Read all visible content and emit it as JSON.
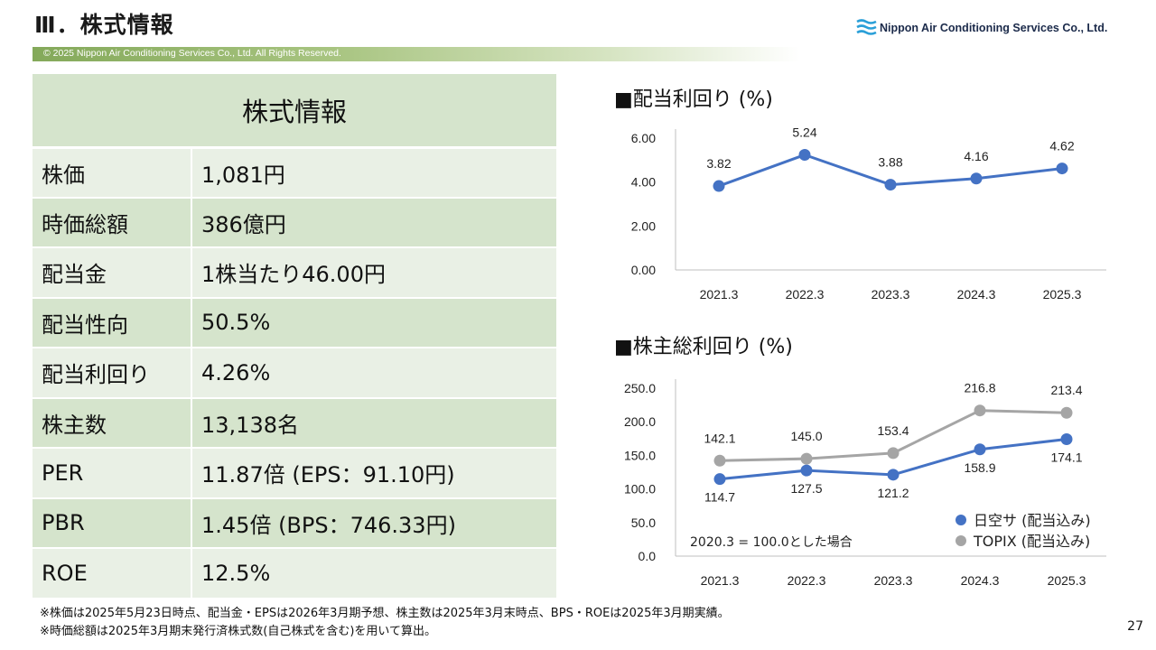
{
  "header": {
    "title": "Ⅲ．株式情報",
    "company": "Nippon Air Conditioning Services Co., Ltd.",
    "copyright": "© 2025 Nippon Air Conditioning Services Co., Ltd. All Rights Reserved."
  },
  "table": {
    "title": "株式情報",
    "rows": [
      {
        "label": "株価",
        "value": "1,081円"
      },
      {
        "label": "時価総額",
        "value": "386億円"
      },
      {
        "label": "配当金",
        "value": "1株当たり46.00円"
      },
      {
        "label": "配当性向",
        "value": "50.5%"
      },
      {
        "label": "配当利回り",
        "value": "4.26%"
      },
      {
        "label": "株主数",
        "value": "13,138名"
      },
      {
        "label": "PER",
        "value": "11.87倍 (EPS：91.10円)"
      },
      {
        "label": "PBR",
        "value": "1.45倍 (BPS：746.33円)"
      },
      {
        "label": "ROE",
        "value": "12.5%"
      }
    ]
  },
  "chart_data": [
    {
      "type": "line",
      "title": "■配当利回り (%)",
      "categories": [
        "2021.3",
        "2022.3",
        "2023.3",
        "2024.3",
        "2025.3"
      ],
      "yticks": [
        "0.00",
        "2.00",
        "4.00",
        "6.00"
      ],
      "ylim": [
        0,
        6
      ],
      "series": [
        {
          "values": [
            3.82,
            5.24,
            3.88,
            4.16,
            4.62
          ],
          "labels": [
            "3.82",
            "5.24",
            "3.88",
            "4.16",
            "4.62"
          ],
          "color": "#4472c4"
        }
      ],
      "grid": false
    },
    {
      "type": "line",
      "title": "■株主総利回り (%)",
      "categories": [
        "2021.3",
        "2022.3",
        "2023.3",
        "2024.3",
        "2025.3"
      ],
      "yticks": [
        "0.0",
        "50.0",
        "100.0",
        "150.0",
        "200.0",
        "250.0"
      ],
      "ylim": [
        0,
        250
      ],
      "series": [
        {
          "name": "日空サ (配当込み)",
          "values": [
            114.7,
            127.5,
            121.2,
            158.9,
            174.1
          ],
          "labels": [
            "114.7",
            "127.5",
            "121.2",
            "158.9",
            "174.1"
          ],
          "color": "#4472c4"
        },
        {
          "name": "TOPIX (配当込み)",
          "values": [
            142.1,
            145.0,
            153.4,
            216.8,
            213.4
          ],
          "labels": [
            "142.1",
            "145.0",
            "153.4",
            "216.8",
            "213.4"
          ],
          "color": "#a5a5a5"
        }
      ],
      "annotation": "2020.3 = 100.0とした場合",
      "legend": "bottom-right",
      "grid": false
    }
  ],
  "footnotes": [
    "※株価は2025年5月23日時点、配当金・EPSは2026年3月期予想、株主数は2025年3月末時点、BPS・ROEは2025年3月期実績。",
    "※時価総額は2025年3月期末発行済株式数(自己株式を含む)を用いて算出。"
  ],
  "page_number": "27"
}
